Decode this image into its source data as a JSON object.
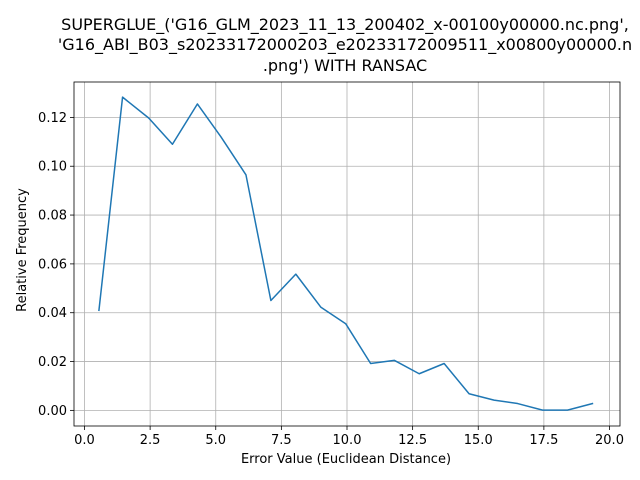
{
  "chart_data": {
    "type": "line",
    "title_lines": [
      "SUPERGLUE_('G16_GLM_2023_11_13_200402_x-00100y00000.nc.png',",
      "'G16_ABI_B03_s20233172000203_e20233172009511_x00800y00000.n",
      ".png') WITH RANSAC"
    ],
    "xlabel": "Error Value (Euclidean Distance)",
    "ylabel": "Relative Frequency",
    "xlim": [
      -0.4,
      20.4
    ],
    "ylim": [
      -0.0064,
      0.1345
    ],
    "grid": true,
    "x_ticks": [
      0.0,
      2.5,
      5.0,
      7.5,
      10.0,
      12.5,
      15.0,
      17.5,
      20.0
    ],
    "x_tick_labels": [
      "0.0",
      "2.5",
      "5.0",
      "7.5",
      "10.0",
      "12.5",
      "15.0",
      "17.5",
      "20.0"
    ],
    "y_ticks": [
      0.0,
      0.02,
      0.04,
      0.06,
      0.08,
      0.1,
      0.12
    ],
    "y_tick_labels": [
      "0.00",
      "0.02",
      "0.04",
      "0.06",
      "0.08",
      "0.10",
      "0.12"
    ],
    "series": [
      {
        "color": "#1f77b4",
        "x": [
          0.55,
          1.45,
          2.45,
          3.35,
          4.3,
          5.2,
          6.15,
          7.1,
          8.05,
          9.0,
          9.95,
          10.9,
          11.8,
          12.75,
          13.7,
          14.65,
          15.6,
          16.5,
          17.45,
          18.4,
          19.35
        ],
        "y": [
          0.041,
          0.1283,
          0.1197,
          0.109,
          0.1255,
          0.112,
          0.0965,
          0.045,
          0.0558,
          0.0423,
          0.0355,
          0.0192,
          0.0205,
          0.015,
          0.0192,
          0.0068,
          0.0042,
          0.0028,
          0.0001,
          0.0001,
          0.0028
        ]
      }
    ]
  }
}
